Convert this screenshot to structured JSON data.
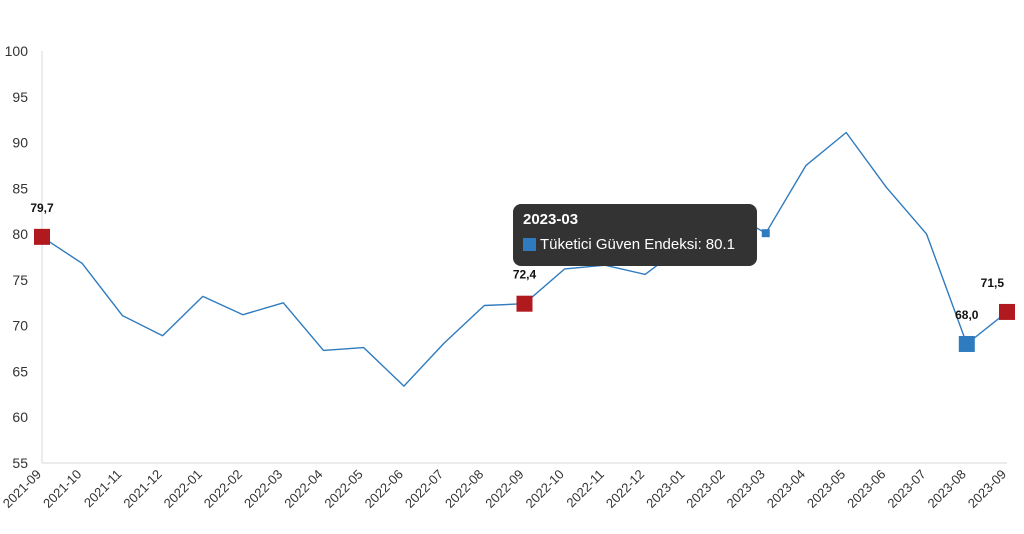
{
  "chart_data": {
    "type": "line",
    "x": [
      "2021-09",
      "2021-10",
      "2021-11",
      "2021-12",
      "2022-01",
      "2022-02",
      "2022-03",
      "2022-04",
      "2022-05",
      "2022-06",
      "2022-07",
      "2022-08",
      "2022-09",
      "2022-10",
      "2022-11",
      "2022-12",
      "2023-01",
      "2023-02",
      "2023-03",
      "2023-04",
      "2023-05",
      "2023-06",
      "2023-07",
      "2023-08",
      "2023-09"
    ],
    "series": [
      {
        "name": "Tüketici Güven Endeksi",
        "values": [
          79.7,
          76.8,
          71.1,
          68.9,
          73.2,
          71.2,
          72.5,
          67.3,
          67.6,
          63.4,
          68.1,
          72.2,
          72.4,
          76.2,
          76.6,
          75.6,
          78.9,
          82.6,
          80.1,
          87.5,
          91.1,
          85.1,
          80.0,
          68.0,
          71.5
        ],
        "color": "#2f7bbf"
      }
    ],
    "ylim": [
      55,
      100
    ],
    "yticks": [
      "55",
      "60",
      "65",
      "70",
      "75",
      "80",
      "85",
      "90",
      "95",
      "100"
    ],
    "annotations": [
      {
        "x": "2021-09",
        "label": "79,7",
        "color": "#b0191e"
      },
      {
        "x": "2022-09",
        "label": "72,4",
        "color": "#b0191e"
      },
      {
        "x": "2023-08",
        "label": "68,0",
        "color": "#2f7bbf"
      },
      {
        "x": "2023-09",
        "label": "71,5",
        "color": "#b0191e"
      }
    ],
    "highlight": {
      "x": "2023-03",
      "color": "#2f7bbf"
    },
    "grid": false
  },
  "tooltip": {
    "title": "2023-03",
    "series_label": "Tüketici Güven Endeksi:",
    "value": "80.1",
    "swatch_color": "#2f7bbf"
  }
}
